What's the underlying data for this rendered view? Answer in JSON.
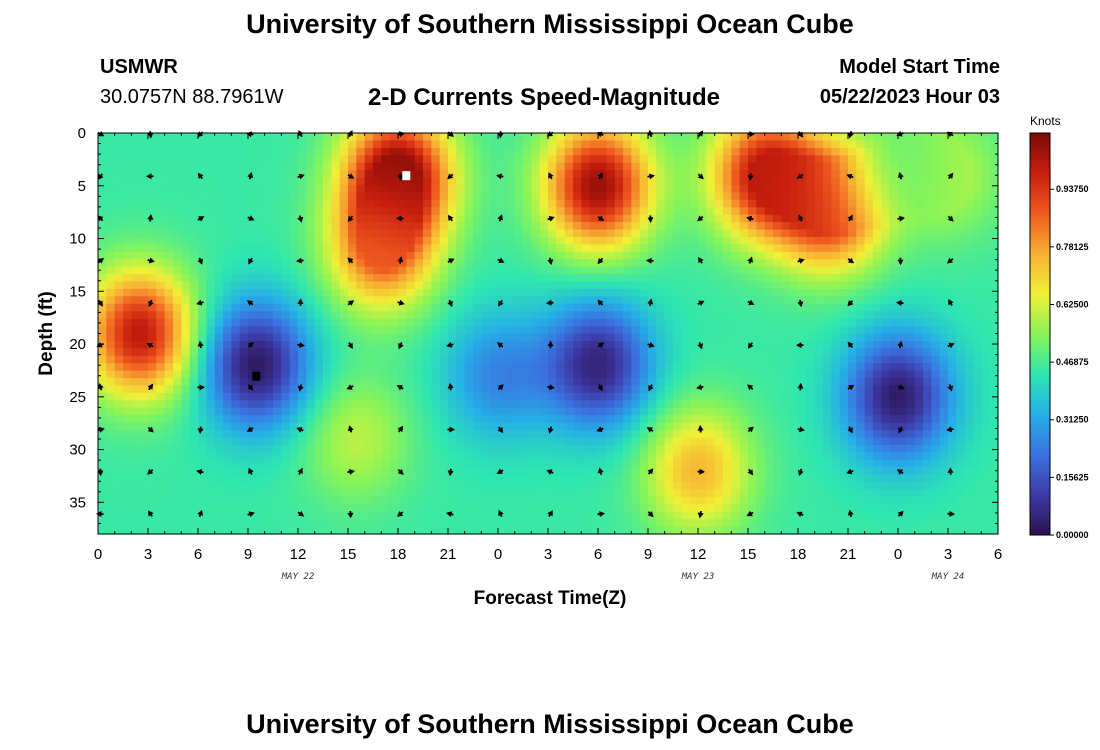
{
  "page": {
    "title": "University of Southern Mississippi Ocean Cube",
    "station": "USMWR",
    "coordinates": "30.0757N  88.7961W",
    "subtitle": "2-D Currents Speed-Magnitude",
    "model_start_label": "Model Start Time",
    "model_start_value": "05/22/2023 Hour 03",
    "footer_title": "University of Southern Mississippi Ocean Cube"
  },
  "chart_data": {
    "type": "heatmap",
    "xlabel": "Forecast Time(Z)",
    "ylabel": "Depth (ft)",
    "x_tick_labels": [
      "0",
      "3",
      "6",
      "9",
      "12",
      "15",
      "18",
      "21",
      "0",
      "3",
      "6",
      "9",
      "12",
      "15",
      "18",
      "21",
      "0",
      "3",
      "6"
    ],
    "date_labels": [
      {
        "text": "MAY 22",
        "at_tick": 4
      },
      {
        "text": "MAY 23",
        "at_tick": 12
      },
      {
        "text": "MAY 24",
        "at_tick": 17
      }
    ],
    "ylim": [
      0,
      38
    ],
    "y_ticks": [
      0,
      5,
      10,
      15,
      20,
      25,
      30,
      35
    ],
    "colorbar": {
      "unit": "Knots",
      "range": [
        0,
        1.09
      ],
      "tick_labels": [
        "0.00000",
        "0.15625",
        "0.31250",
        "0.46875",
        "0.62500",
        "0.78125",
        "0.93750"
      ],
      "tick_values": [
        0,
        0.15625,
        0.3125,
        0.46875,
        0.625,
        0.78125,
        0.9375
      ],
      "colors": [
        "#2b1150",
        "#3d3aa6",
        "#3b72e0",
        "#25b0e6",
        "#2ee6b0",
        "#88f458",
        "#f0f036",
        "#f8b034",
        "#ef5a20",
        "#c81e0e",
        "#7c0a06"
      ]
    },
    "vector_columns_hours": [
      0,
      3,
      6,
      9,
      12,
      15,
      18,
      21,
      24,
      27,
      30,
      33,
      36,
      39,
      42,
      45,
      48,
      51
    ],
    "vector_rows_depth": [
      0,
      4,
      8,
      12,
      16,
      20,
      24,
      28,
      32,
      36
    ],
    "speed_hotspots": [
      {
        "hour": 2.5,
        "depth": 19,
        "speed": 1.0
      },
      {
        "hour": 18,
        "depth": 4,
        "speed": 1.08
      },
      {
        "hour": 17,
        "depth": 11,
        "speed": 0.85
      },
      {
        "hour": 30,
        "depth": 5,
        "speed": 1.05
      },
      {
        "hour": 40,
        "depth": 4,
        "speed": 1.0
      },
      {
        "hour": 44,
        "depth": 7,
        "speed": 0.95
      },
      {
        "hour": 48,
        "depth": 4,
        "speed": 0.45
      },
      {
        "hour": 51,
        "depth": 4,
        "speed": 0.6
      },
      {
        "hour": 36,
        "depth": 32,
        "speed": 0.75
      },
      {
        "hour": 15.5,
        "depth": 29,
        "speed": 0.6
      },
      {
        "hour": 9.5,
        "depth": 22,
        "speed": 0.02
      },
      {
        "hour": 30,
        "depth": 22,
        "speed": 0.05
      },
      {
        "hour": 48,
        "depth": 25,
        "speed": 0.03
      },
      {
        "hour": 24,
        "depth": 23,
        "speed": 0.25
      }
    ],
    "markers": [
      {
        "hour": 18.5,
        "depth": 4,
        "color": "#ffffff"
      },
      {
        "hour": 9.5,
        "depth": 23,
        "color": "#000000"
      }
    ]
  }
}
